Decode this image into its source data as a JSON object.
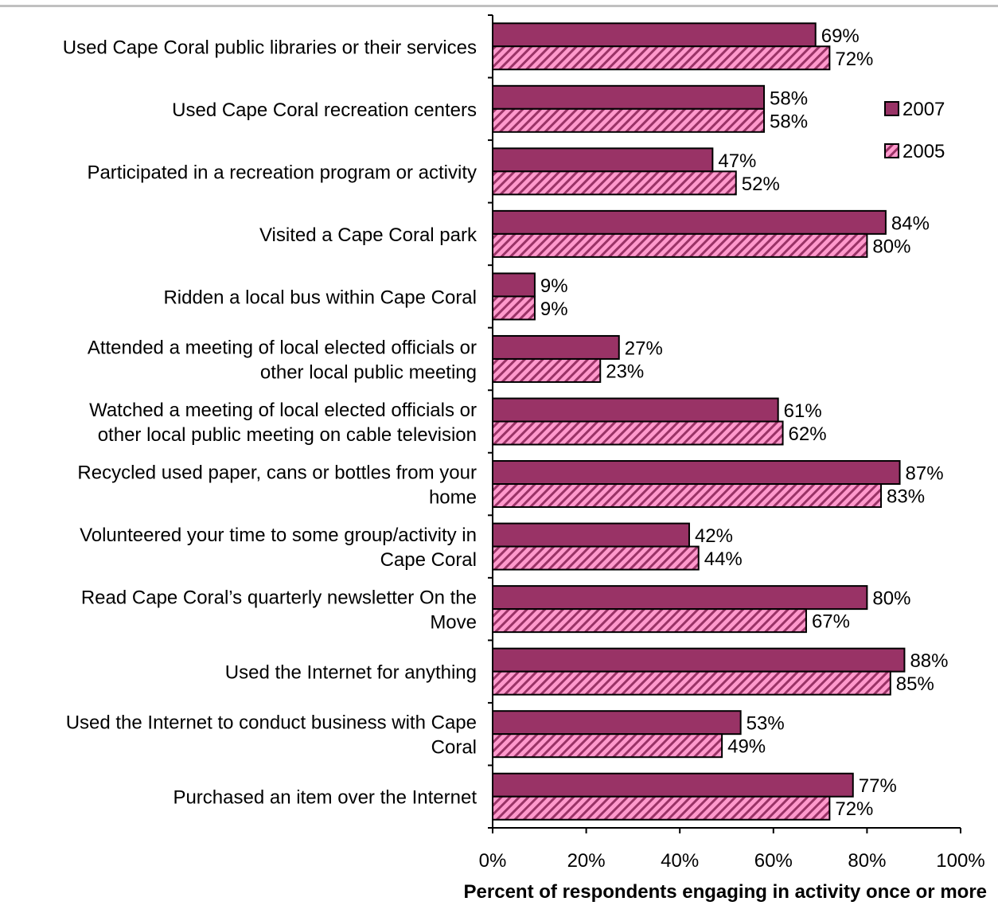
{
  "chart_data": {
    "type": "bar",
    "orientation": "horizontal",
    "categories": [
      "Used Cape Coral public libraries or their services",
      "Used Cape Coral recreation centers",
      "Participated in a recreation program or activity",
      "Visited a Cape Coral park",
      "Ridden a local bus within Cape Coral",
      "Attended a meeting of local elected officials or\nother local public meeting",
      "Watched a meeting of local elected officials or\nother local public meeting on cable television",
      "Recycled used paper, cans or bottles from your\nhome",
      "Volunteered your time to some group/activity in\nCape Coral",
      "Read Cape Coral’s quarterly newsletter On the\nMove",
      "Used the Internet for anything",
      "Used the Internet to conduct business with Cape\nCoral",
      "Purchased an item over the Internet"
    ],
    "series": [
      {
        "name": "2007",
        "color": "#993366",
        "pattern": "solid",
        "values": [
          69,
          58,
          47,
          84,
          9,
          27,
          61,
          87,
          42,
          80,
          88,
          53,
          77
        ]
      },
      {
        "name": "2005",
        "color": "#ff99cc",
        "stripe_color": "#993366",
        "pattern": "diagonal-hatch",
        "values": [
          72,
          58,
          52,
          80,
          9,
          23,
          62,
          83,
          44,
          67,
          85,
          49,
          72
        ]
      }
    ],
    "value_suffix": "%",
    "xlabel": "Percent of respondents engaging in activity once or more",
    "ylabel": "",
    "xlim": [
      0,
      100
    ],
    "xticks": [
      0,
      20,
      40,
      60,
      80,
      100
    ],
    "xtick_labels": [
      "0%",
      "20%",
      "40%",
      "60%",
      "80%",
      "100%"
    ],
    "grid": false,
    "legend_position": "top-right"
  }
}
